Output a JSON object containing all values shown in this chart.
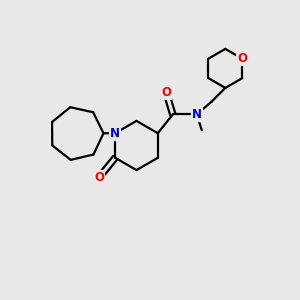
{
  "bg_color": "#e8e8e8",
  "atom_colors": {
    "N": "#0000cc",
    "O": "#ff0000",
    "C": "#000000"
  },
  "bond_color": "#000000",
  "bond_width": 1.6,
  "font_size_atom": 8.5,
  "fig_bg": "#e8e8e8"
}
